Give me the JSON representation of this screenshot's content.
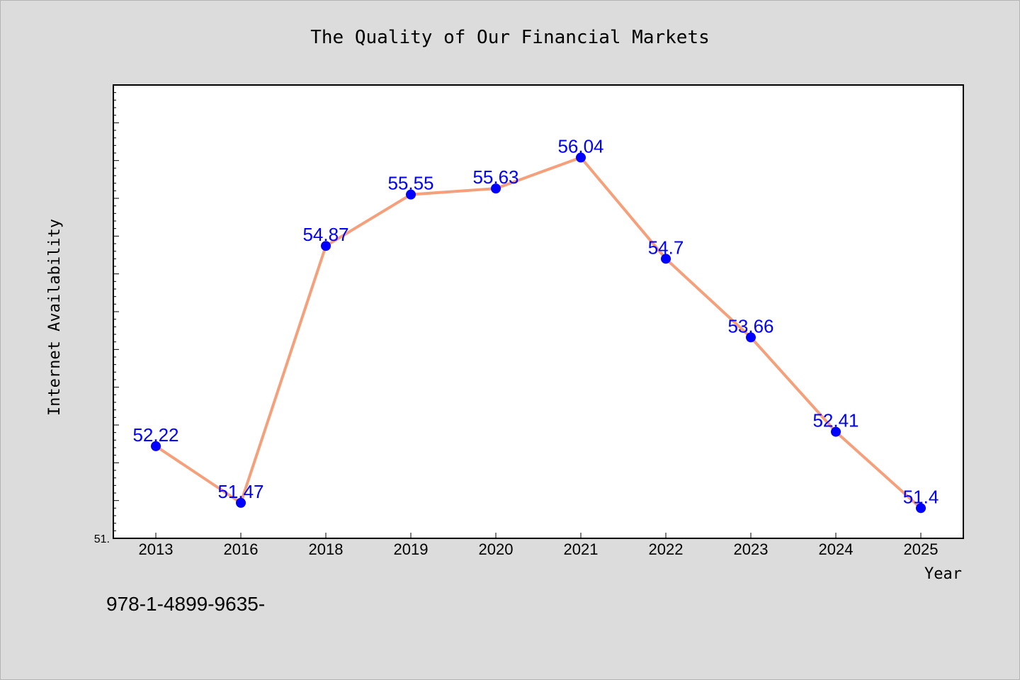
{
  "chart_data": {
    "type": "line",
    "title": "The Quality of Our Financial Markets",
    "xlabel": "Year",
    "ylabel": "Internet Availability",
    "categories": [
      "2013",
      "2016",
      "2018",
      "2019",
      "2020",
      "2021",
      "2022",
      "2023",
      "2024",
      "2025"
    ],
    "series": [
      {
        "values": [
          52.22,
          51.47,
          54.87,
          55.55,
          55.63,
          56.04,
          54.7,
          53.66,
          52.41,
          51.4
        ],
        "labels": [
          "52.22",
          "51.47",
          "54.87",
          "55.55",
          "55.63",
          "56.04",
          "54.7",
          "53.66",
          "52.41",
          "51.4"
        ],
        "line_color": "#f5a07a",
        "marker_color": "#0000ff"
      }
    ],
    "ylim": [
      51.0,
      57.0
    ],
    "y_tick_label": "51.",
    "grid": false,
    "label_color": "#0000ff"
  },
  "footnote": "978-1-4899-9635-"
}
